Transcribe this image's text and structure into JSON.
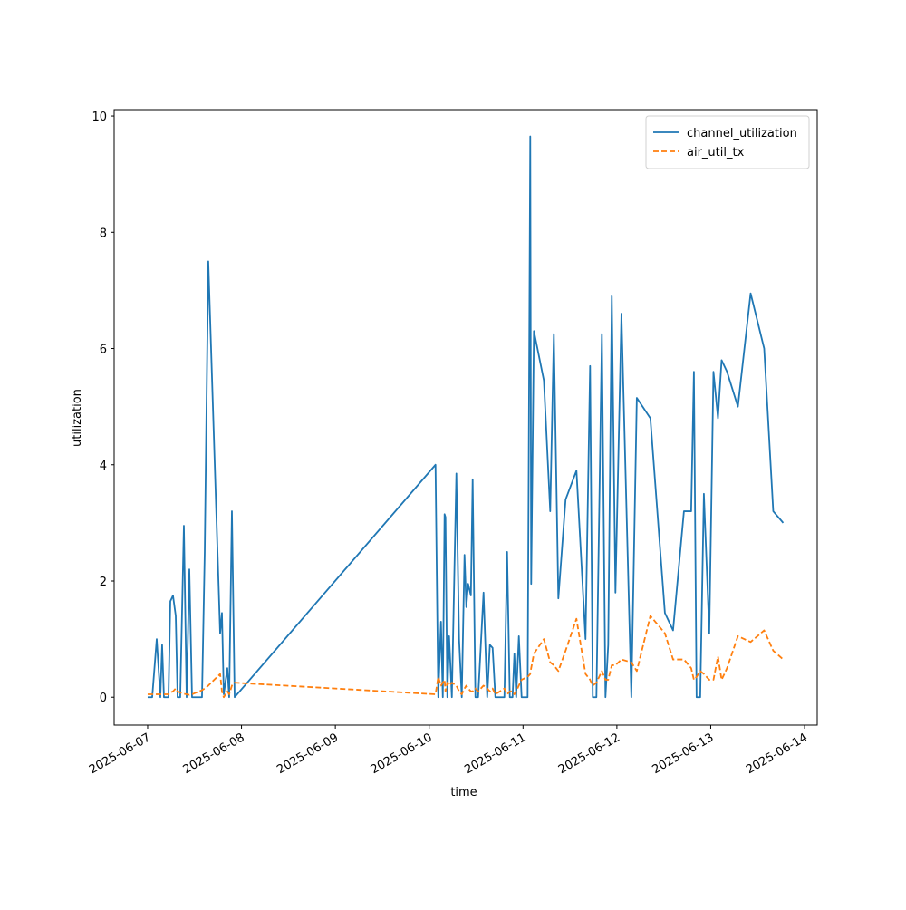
{
  "chart_data": {
    "type": "line",
    "xlabel": "time",
    "ylabel": "utilization",
    "x": [
      "2025-06-07T00:00",
      "2025-06-07T01:10",
      "2025-06-07T02:19",
      "2025-06-07T03:15",
      "2025-06-07T03:42",
      "2025-06-07T04:10",
      "2025-06-07T05:20",
      "2025-06-07T05:48",
      "2025-06-07T06:29",
      "2025-06-07T07:11",
      "2025-06-07T07:39",
      "2025-06-07T08:20",
      "2025-06-07T09:16",
      "2025-06-07T09:58",
      "2025-06-07T10:40",
      "2025-06-07T11:21",
      "2025-06-07T13:54",
      "2025-06-07T14:36",
      "2025-06-07T15:31",
      "2025-06-07T18:32",
      "2025-06-07T19:00",
      "2025-06-07T19:28",
      "2025-06-07T20:23",
      "2025-06-07T20:51",
      "2025-06-07T21:33",
      "2025-06-07T22:15",
      "2025-06-10T01:37",
      "2025-06-10T02:19",
      "2025-06-10T03:01",
      "2025-06-10T03:29",
      "2025-06-10T03:56",
      "2025-06-10T04:10",
      "2025-06-10T04:38",
      "2025-06-10T05:06",
      "2025-06-10T05:48",
      "2025-06-10T06:57",
      "2025-06-10T07:39",
      "2025-06-10T08:20",
      "2025-06-10T09:02",
      "2025-06-10T09:30",
      "2025-06-10T09:58",
      "2025-06-10T10:40",
      "2025-06-10T11:07",
      "2025-06-10T11:49",
      "2025-06-10T12:31",
      "2025-06-10T13:54",
      "2025-06-10T14:50",
      "2025-06-10T15:31",
      "2025-06-10T16:13",
      "2025-06-10T16:55",
      "2025-06-10T19:14",
      "2025-06-10T19:56",
      "2025-06-10T20:37",
      "2025-06-10T21:19",
      "2025-06-10T21:47",
      "2025-06-10T22:15",
      "2025-06-10T22:56",
      "2025-06-10T23:38",
      "2025-06-11T01:10",
      "2025-06-11T01:51",
      "2025-06-11T02:05",
      "2025-06-11T02:47",
      "2025-06-11T05:20",
      "2025-06-11T06:57",
      "2025-06-11T07:53",
      "2025-06-11T09:02",
      "2025-06-11T10:53",
      "2025-06-11T13:40",
      "2025-06-11T15:59",
      "2025-06-11T17:09",
      "2025-06-11T17:50",
      "2025-06-11T18:46",
      "2025-06-11T20:10",
      "2025-06-11T21:05",
      "2025-06-11T21:47",
      "2025-06-11T22:42",
      "2025-06-11T23:38",
      "2025-06-12T01:10",
      "2025-06-12T03:42",
      "2025-06-12T05:06",
      "2025-06-12T08:34",
      "2025-06-12T12:17",
      "2025-06-12T14:22",
      "2025-06-12T17:09",
      "2025-06-12T19:00",
      "2025-06-12T19:42",
      "2025-06-12T20:23",
      "2025-06-12T21:19",
      "2025-06-12T22:15",
      "2025-06-12T23:38",
      "2025-06-13T00:42",
      "2025-06-13T01:51",
      "2025-06-13T02:47",
      "2025-06-13T04:10",
      "2025-06-13T06:57",
      "2025-06-13T10:12",
      "2025-06-13T13:40",
      "2025-06-13T15:59",
      "2025-06-13T18:32"
    ],
    "series": [
      {
        "name": "channel_utilization",
        "color": "#1f77b4",
        "dash": "solid",
        "values": [
          0,
          0,
          1.0,
          0,
          0.9,
          0,
          0,
          1.65,
          1.75,
          1.4,
          0,
          0,
          2.95,
          0,
          2.2,
          0,
          0,
          2.5,
          7.5,
          1.1,
          1.45,
          0.05,
          0.5,
          0,
          3.2,
          0,
          4.0,
          0,
          1.3,
          0,
          3.15,
          3.1,
          0,
          1.05,
          0,
          3.85,
          1.0,
          0,
          2.45,
          1.55,
          1.95,
          1.75,
          3.75,
          0,
          0,
          1.8,
          0,
          0.9,
          0.85,
          0,
          0,
          2.5,
          0,
          0,
          0.75,
          0,
          1.05,
          0,
          0,
          9.65,
          1.95,
          6.3,
          5.45,
          3.2,
          6.25,
          1.7,
          3.4,
          3.9,
          1.0,
          5.7,
          0,
          0,
          6.25,
          0,
          0.9,
          6.9,
          1.8,
          6.6,
          0,
          5.15,
          4.8,
          1.45,
          1.15,
          3.2,
          3.2,
          5.6,
          0,
          0,
          3.5,
          1.1,
          5.6,
          4.8,
          5.8,
          5.6,
          5.0,
          6.95,
          6.0,
          3.2,
          3.0
        ]
      },
      {
        "name": "air_util_tx",
        "color": "#ff7f0e",
        "dash": "dashed",
        "values": [
          0.05,
          0.05,
          0.05,
          0.05,
          0.05,
          0.05,
          0.05,
          0.08,
          0.1,
          0.15,
          0.1,
          0.08,
          0.06,
          0.05,
          0.04,
          0.05,
          0.12,
          0.15,
          0.2,
          0.4,
          0.1,
          0.0,
          0.1,
          0.05,
          0.2,
          0.25,
          0.05,
          0.35,
          0.2,
          0.25,
          0.3,
          0.1,
          0.25,
          0.2,
          0.25,
          0.2,
          0.1,
          0.05,
          0.15,
          0.2,
          0.15,
          0.1,
          0.1,
          0.15,
          0.1,
          0.2,
          0.15,
          0.1,
          0.15,
          0.05,
          0.15,
          0.05,
          0.1,
          0.1,
          0.05,
          0.1,
          0.2,
          0.3,
          0.35,
          0.4,
          0.5,
          0.75,
          1.0,
          0.6,
          0.55,
          0.45,
          0.8,
          1.35,
          0.4,
          0.3,
          0.2,
          0.25,
          0.45,
          0.3,
          0.3,
          0.55,
          0.55,
          0.65,
          0.6,
          0.45,
          1.4,
          1.1,
          0.65,
          0.65,
          0.5,
          0.3,
          0.35,
          0.45,
          0.4,
          0.3,
          0.3,
          0.7,
          0.3,
          0.5,
          1.05,
          0.95,
          1.15,
          0.8,
          0.65
        ]
      }
    ],
    "xlim": [
      "2025-06-06T15:26",
      "2025-06-14T03:14"
    ],
    "xticks": [
      "2025-06-07",
      "2025-06-08",
      "2025-06-09",
      "2025-06-10",
      "2025-06-11",
      "2025-06-12",
      "2025-06-13",
      "2025-06-14"
    ],
    "ylim": [
      -0.48,
      10.11
    ],
    "yticks": [
      0,
      2,
      4,
      6,
      8,
      10
    ],
    "legend": "upper right",
    "grid": false
  }
}
